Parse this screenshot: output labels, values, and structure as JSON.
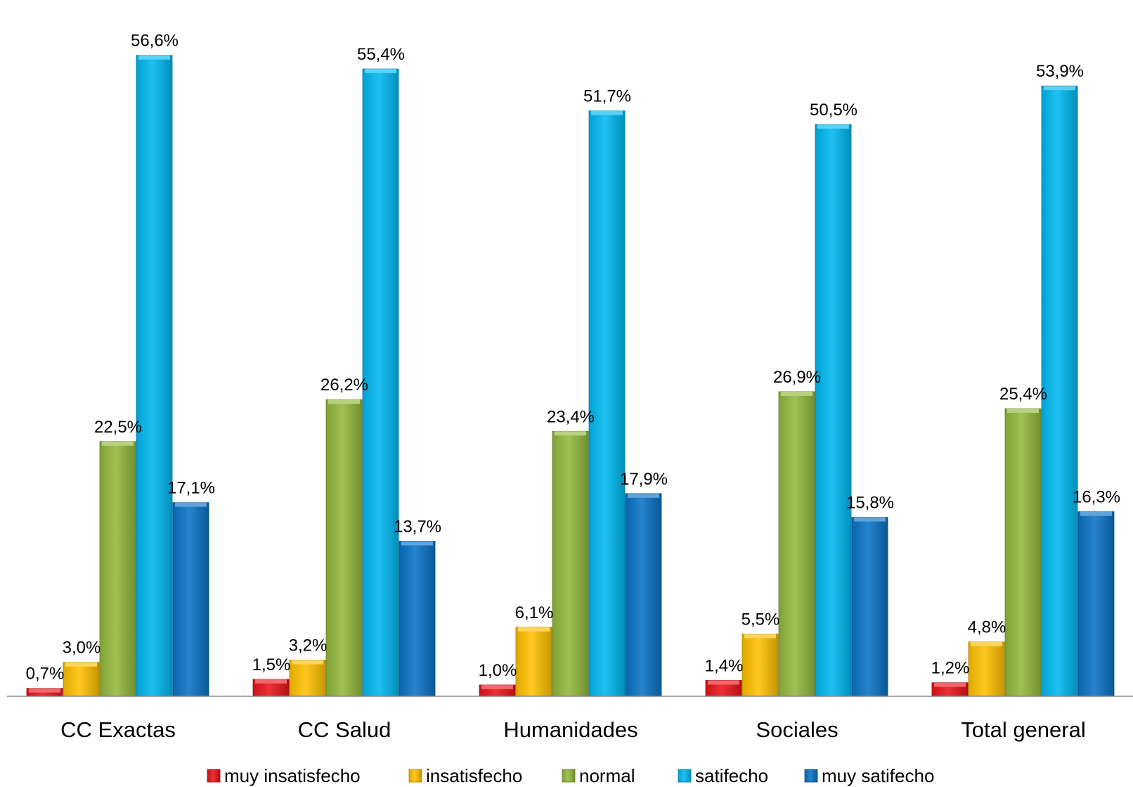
{
  "chart_data": {
    "type": "bar",
    "categories": [
      "CC Exactas",
      "CC Salud",
      "Humanidades",
      "Sociales",
      "Total general"
    ],
    "series": [
      {
        "name": "muy insatisfecho",
        "color": "#e8141b",
        "values": [
          0.7,
          1.5,
          1.0,
          1.4,
          1.2
        ],
        "labels": [
          "0,7%",
          "1,5%",
          "1,0%",
          "1,4%",
          "1,2%"
        ]
      },
      {
        "name": "insatisfecho",
        "color": "#ffc000",
        "values": [
          3.0,
          3.2,
          6.1,
          5.5,
          4.8
        ],
        "labels": [
          "3,0%",
          "3,2%",
          "6,1%",
          "5,5%",
          "4,8%"
        ]
      },
      {
        "name": "normal",
        "color": "#92b83c",
        "values": [
          22.5,
          26.2,
          23.4,
          26.9,
          25.4
        ],
        "labels": [
          "22,5%",
          "26,2%",
          "23,4%",
          "26,9%",
          "25,4%"
        ]
      },
      {
        "name": "satifecho",
        "color": "#00b7f0",
        "values": [
          56.6,
          55.4,
          51.7,
          50.5,
          53.9
        ],
        "labels": [
          "56,6%",
          "55,4%",
          "51,7%",
          "50,5%",
          "53,9%"
        ]
      },
      {
        "name": "muy satifecho",
        "color": "#0a72c6",
        "values": [
          17.1,
          13.7,
          17.9,
          15.8,
          16.3
        ],
        "labels": [
          "17,1%",
          "13,7%",
          "17,9%",
          "15,8%",
          "16,3%"
        ]
      }
    ],
    "ylim": [
      0,
      60
    ],
    "grid": false,
    "legend_position": "bottom"
  }
}
